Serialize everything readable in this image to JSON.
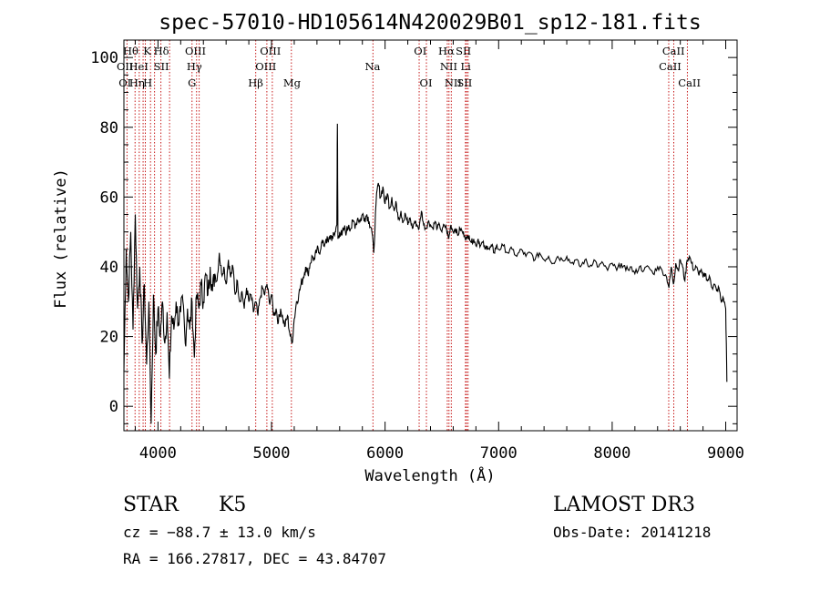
{
  "chart_data": {
    "type": "line",
    "title": "spec-57010-HD105614N420029B01_sp12-181.fits",
    "xlabel": "Wavelength (Å)",
    "ylabel": "Flux (relative)",
    "xlim": [
      3700,
      9100
    ],
    "ylim": [
      -7,
      105
    ],
    "x_ticks": [
      4000,
      5000,
      6000,
      7000,
      8000,
      9000
    ],
    "y_ticks": [
      0,
      20,
      40,
      60,
      80,
      100
    ],
    "grid": false,
    "series": [
      {
        "points": [
          [
            3700,
            10
          ],
          [
            3720,
            45
          ],
          [
            3740,
            30
          ],
          [
            3760,
            50
          ],
          [
            3780,
            22
          ],
          [
            3800,
            55
          ],
          [
            3820,
            28
          ],
          [
            3840,
            40
          ],
          [
            3860,
            18
          ],
          [
            3880,
            35
          ],
          [
            3900,
            12
          ],
          [
            3920,
            30
          ],
          [
            3940,
            -5
          ],
          [
            3960,
            32
          ],
          [
            3980,
            15
          ],
          [
            4000,
            28
          ],
          [
            4020,
            20
          ],
          [
            4040,
            30
          ],
          [
            4060,
            18
          ],
          [
            4080,
            27
          ],
          [
            4100,
            8
          ],
          [
            4120,
            26
          ],
          [
            4140,
            22
          ],
          [
            4160,
            30
          ],
          [
            4180,
            24
          ],
          [
            4200,
            27
          ],
          [
            4220,
            30
          ],
          [
            4240,
            18
          ],
          [
            4260,
            28
          ],
          [
            4280,
            22
          ],
          [
            4300,
            30
          ],
          [
            4320,
            14
          ],
          [
            4340,
            32
          ],
          [
            4360,
            28
          ],
          [
            4380,
            35
          ],
          [
            4400,
            30
          ],
          [
            4420,
            38
          ],
          [
            4440,
            32
          ],
          [
            4460,
            40
          ],
          [
            4480,
            33
          ],
          [
            4500,
            38
          ],
          [
            4520,
            36
          ],
          [
            4540,
            44
          ],
          [
            4560,
            38
          ],
          [
            4580,
            40
          ],
          [
            4600,
            35
          ],
          [
            4620,
            42
          ],
          [
            4640,
            37
          ],
          [
            4660,
            40
          ],
          [
            4680,
            32
          ],
          [
            4700,
            36
          ],
          [
            4720,
            30
          ],
          [
            4740,
            33
          ],
          [
            4760,
            28
          ],
          [
            4780,
            34
          ],
          [
            4800,
            30
          ],
          [
            4820,
            32
          ],
          [
            4840,
            27
          ],
          [
            4860,
            30
          ],
          [
            4880,
            26
          ],
          [
            4900,
            31
          ],
          [
            4920,
            34
          ],
          [
            4940,
            32
          ],
          [
            4960,
            35
          ],
          [
            4980,
            30
          ],
          [
            5000,
            32
          ],
          [
            5020,
            26
          ],
          [
            5040,
            28
          ],
          [
            5060,
            24
          ],
          [
            5080,
            28
          ],
          [
            5100,
            25
          ],
          [
            5120,
            23
          ],
          [
            5140,
            26
          ],
          [
            5160,
            21
          ],
          [
            5180,
            18
          ],
          [
            5200,
            25
          ],
          [
            5220,
            30
          ],
          [
            5240,
            32
          ],
          [
            5260,
            35
          ],
          [
            5280,
            37
          ],
          [
            5300,
            40
          ],
          [
            5320,
            38
          ],
          [
            5340,
            41
          ],
          [
            5360,
            43
          ],
          [
            5380,
            42
          ],
          [
            5400,
            45
          ],
          [
            5420,
            44
          ],
          [
            5440,
            47
          ],
          [
            5460,
            46
          ],
          [
            5480,
            48
          ],
          [
            5500,
            47
          ],
          [
            5520,
            49
          ],
          [
            5540,
            48
          ],
          [
            5560,
            50
          ],
          [
            5575,
            52
          ],
          [
            5580,
            81
          ],
          [
            5585,
            48
          ],
          [
            5600,
            50
          ],
          [
            5620,
            49
          ],
          [
            5640,
            51
          ],
          [
            5660,
            50
          ],
          [
            5680,
            52
          ],
          [
            5700,
            51
          ],
          [
            5720,
            53
          ],
          [
            5740,
            52
          ],
          [
            5760,
            54
          ],
          [
            5780,
            53
          ],
          [
            5800,
            55
          ],
          [
            5820,
            54
          ],
          [
            5840,
            55
          ],
          [
            5860,
            53
          ],
          [
            5880,
            51
          ],
          [
            5900,
            44
          ],
          [
            5920,
            58
          ],
          [
            5940,
            64
          ],
          [
            5960,
            60
          ],
          [
            5980,
            63
          ],
          [
            6000,
            58
          ],
          [
            6020,
            61
          ],
          [
            6040,
            57
          ],
          [
            6060,
            60
          ],
          [
            6080,
            56
          ],
          [
            6100,
            58
          ],
          [
            6120,
            54
          ],
          [
            6140,
            56
          ],
          [
            6160,
            53
          ],
          [
            6180,
            55
          ],
          [
            6200,
            52
          ],
          [
            6220,
            54
          ],
          [
            6240,
            51
          ],
          [
            6260,
            53
          ],
          [
            6280,
            52
          ],
          [
            6300,
            51
          ],
          [
            6320,
            56
          ],
          [
            6340,
            52
          ],
          [
            6360,
            51
          ],
          [
            6380,
            53
          ],
          [
            6400,
            52
          ],
          [
            6420,
            51
          ],
          [
            6440,
            53
          ],
          [
            6460,
            51
          ],
          [
            6480,
            52
          ],
          [
            6500,
            50
          ],
          [
            6520,
            52
          ],
          [
            6540,
            51
          ],
          [
            6560,
            48
          ],
          [
            6580,
            52
          ],
          [
            6600,
            50
          ],
          [
            6620,
            51
          ],
          [
            6640,
            49
          ],
          [
            6660,
            51
          ],
          [
            6680,
            50
          ],
          [
            6700,
            49
          ],
          [
            6720,
            48
          ],
          [
            6740,
            49
          ],
          [
            6760,
            47
          ],
          [
            6780,
            48
          ],
          [
            6800,
            46
          ],
          [
            6820,
            48
          ],
          [
            6840,
            46
          ],
          [
            6860,
            47
          ],
          [
            6880,
            45
          ],
          [
            6900,
            46
          ],
          [
            6920,
            45
          ],
          [
            6940,
            46
          ],
          [
            6960,
            44
          ],
          [
            6980,
            46
          ],
          [
            7000,
            45
          ],
          [
            7040,
            46
          ],
          [
            7080,
            44
          ],
          [
            7120,
            45
          ],
          [
            7160,
            43
          ],
          [
            7200,
            45
          ],
          [
            7240,
            43
          ],
          [
            7280,
            44
          ],
          [
            7320,
            42
          ],
          [
            7360,
            44
          ],
          [
            7400,
            42
          ],
          [
            7440,
            43
          ],
          [
            7480,
            41
          ],
          [
            7520,
            43
          ],
          [
            7560,
            42
          ],
          [
            7600,
            43
          ],
          [
            7640,
            41
          ],
          [
            7680,
            42
          ],
          [
            7720,
            40
          ],
          [
            7760,
            42
          ],
          [
            7800,
            40
          ],
          [
            7840,
            42
          ],
          [
            7880,
            40
          ],
          [
            7920,
            41
          ],
          [
            7960,
            39
          ],
          [
            8000,
            41
          ],
          [
            8040,
            39
          ],
          [
            8080,
            41
          ],
          [
            8120,
            39
          ],
          [
            8160,
            40
          ],
          [
            8200,
            38
          ],
          [
            8240,
            40
          ],
          [
            8280,
            39
          ],
          [
            8320,
            40
          ],
          [
            8360,
            38
          ],
          [
            8400,
            40
          ],
          [
            8440,
            39
          ],
          [
            8480,
            37
          ],
          [
            8500,
            34
          ],
          [
            8520,
            40
          ],
          [
            8540,
            35
          ],
          [
            8560,
            41
          ],
          [
            8580,
            39
          ],
          [
            8600,
            42
          ],
          [
            8620,
            40
          ],
          [
            8640,
            36
          ],
          [
            8660,
            42
          ],
          [
            8680,
            43
          ],
          [
            8700,
            41
          ],
          [
            8720,
            39
          ],
          [
            8740,
            40
          ],
          [
            8760,
            38
          ],
          [
            8780,
            39
          ],
          [
            8800,
            37
          ],
          [
            8820,
            38
          ],
          [
            8840,
            36
          ],
          [
            8860,
            37
          ],
          [
            8880,
            34
          ],
          [
            8900,
            35
          ],
          [
            8920,
            33
          ],
          [
            8940,
            34
          ],
          [
            8960,
            30
          ],
          [
            8980,
            31
          ],
          [
            9000,
            28
          ],
          [
            9010,
            7
          ]
        ]
      }
    ],
    "lines": [
      {
        "x": 3727,
        "rows": [
          1
        ]
      },
      {
        "x": 3798,
        "rows": [
          0
        ]
      },
      {
        "x": 3835,
        "rows": []
      },
      {
        "x": 3869,
        "rows": [
          1
        ]
      },
      {
        "x": 3889,
        "rows": []
      },
      {
        "x": 3934,
        "rows": []
      },
      {
        "x": 3970,
        "rows": []
      },
      {
        "x": 4026,
        "rows": []
      },
      {
        "x": 4102,
        "rows": []
      },
      {
        "x": 4300,
        "rows": []
      },
      {
        "x": 4340,
        "rows": []
      },
      {
        "x": 4363,
        "rows": []
      },
      {
        "x": 4861,
        "rows": []
      },
      {
        "x": 4959,
        "rows": []
      },
      {
        "x": 5007,
        "rows": []
      },
      {
        "x": 5175,
        "rows": []
      },
      {
        "x": 5893,
        "rows": []
      },
      {
        "x": 6300,
        "rows": []
      },
      {
        "x": 6364,
        "rows": []
      },
      {
        "x": 6548,
        "rows": []
      },
      {
        "x": 6563,
        "rows": []
      },
      {
        "x": 6583,
        "rows": []
      },
      {
        "x": 6708,
        "rows": []
      },
      {
        "x": 6717,
        "rows": []
      },
      {
        "x": 6731,
        "rows": []
      },
      {
        "x": 8498,
        "rows": []
      },
      {
        "x": 8542,
        "rows": []
      },
      {
        "x": 8662,
        "rows": []
      }
    ],
    "line_labels": [
      {
        "text": "Hθ",
        "x": 3760,
        "row": 0
      },
      {
        "text": "K",
        "x": 3905,
        "row": 0
      },
      {
        "text": "Hδ",
        "x": 4030,
        "row": 0
      },
      {
        "text": "OIII",
        "x": 4330,
        "row": 0
      },
      {
        "text": "OIII",
        "x": 4990,
        "row": 0
      },
      {
        "text": "OI",
        "x": 6310,
        "row": 0
      },
      {
        "text": "Hα",
        "x": 6540,
        "row": 0
      },
      {
        "text": "SII",
        "x": 6690,
        "row": 0
      },
      {
        "text": "CaII",
        "x": 8540,
        "row": 0
      },
      {
        "text": "OII",
        "x": 3710,
        "row": 1
      },
      {
        "text": "HeI",
        "x": 3830,
        "row": 1
      },
      {
        "text": "SII",
        "x": 4030,
        "row": 1
      },
      {
        "text": "Hγ",
        "x": 4320,
        "row": 1
      },
      {
        "text": "OIII",
        "x": 4950,
        "row": 1
      },
      {
        "text": "Na",
        "x": 5890,
        "row": 1
      },
      {
        "text": "NII",
        "x": 6560,
        "row": 1
      },
      {
        "text": "Li",
        "x": 6710,
        "row": 1
      },
      {
        "text": "CaII",
        "x": 8510,
        "row": 1
      },
      {
        "text": "OI",
        "x": 3710,
        "row": 2
      },
      {
        "text": "Hη",
        "x": 3815,
        "row": 2
      },
      {
        "text": "H",
        "x": 3910,
        "row": 2
      },
      {
        "text": "G",
        "x": 4300,
        "row": 2
      },
      {
        "text": "Hβ",
        "x": 4860,
        "row": 2
      },
      {
        "text": "Mg",
        "x": 5180,
        "row": 2
      },
      {
        "text": "OI",
        "x": 6360,
        "row": 2
      },
      {
        "text": "NII",
        "x": 6600,
        "row": 2
      },
      {
        "text": "SII",
        "x": 6700,
        "row": 2
      },
      {
        "text": "CaII",
        "x": 8680,
        "row": 2
      }
    ]
  },
  "info": {
    "class": "STAR",
    "subclass": "K5",
    "survey": "LAMOST DR3",
    "cz": "cz = −88.7 ± 13.0 km/s",
    "obs_date": "Obs-Date: 20141218",
    "coords": "RA = 166.27817, DEC =  43.84707"
  },
  "colors": {
    "spectrum": "#000000",
    "line_markers": "#c00000",
    "axes": "#000000"
  }
}
